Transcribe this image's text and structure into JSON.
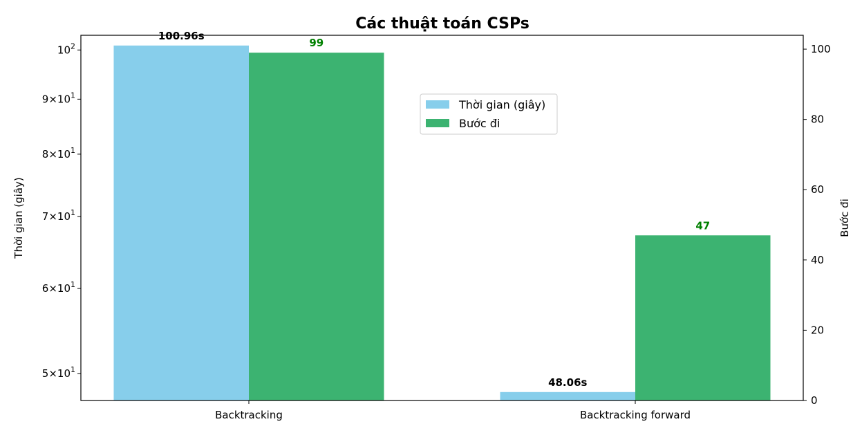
{
  "chart_data": {
    "type": "bar",
    "title": "Các thuật toán CSPs",
    "categories": [
      "Backtracking",
      "Backtracking forward"
    ],
    "series": [
      {
        "name": "Thời gian (giây)",
        "axis": "left",
        "scale": "log",
        "color": "#87CEEB",
        "values": [
          100.96,
          48.06
        ],
        "data_labels": [
          "100.96s",
          "48.06s"
        ],
        "label_color": "#000000"
      },
      {
        "name": "Bước đi",
        "axis": "right",
        "scale": "linear",
        "color": "#3CB371",
        "values": [
          99,
          47
        ],
        "data_labels": [
          "99",
          "47"
        ],
        "label_color": "#008000"
      }
    ],
    "y_left": {
      "label": "Thời gian (giây)",
      "scale": "log",
      "range": [
        47.2,
        103.2
      ],
      "ticks": [
        {
          "value": 50,
          "mant": "5",
          "exp": "1"
        },
        {
          "value": 60,
          "mant": "6",
          "exp": "1"
        },
        {
          "value": 70,
          "mant": "7",
          "exp": "1"
        },
        {
          "value": 80,
          "mant": "8",
          "exp": "1"
        },
        {
          "value": 90,
          "mant": "9",
          "exp": "1"
        },
        {
          "value": 100,
          "mant": "",
          "exp": "2"
        }
      ]
    },
    "y_right": {
      "label": "Bước đi",
      "range": [
        0,
        103.95
      ],
      "ticks": [
        0,
        20,
        40,
        60,
        80,
        100
      ]
    },
    "legend": {
      "placement": "upper-center-right"
    },
    "grid": false
  }
}
